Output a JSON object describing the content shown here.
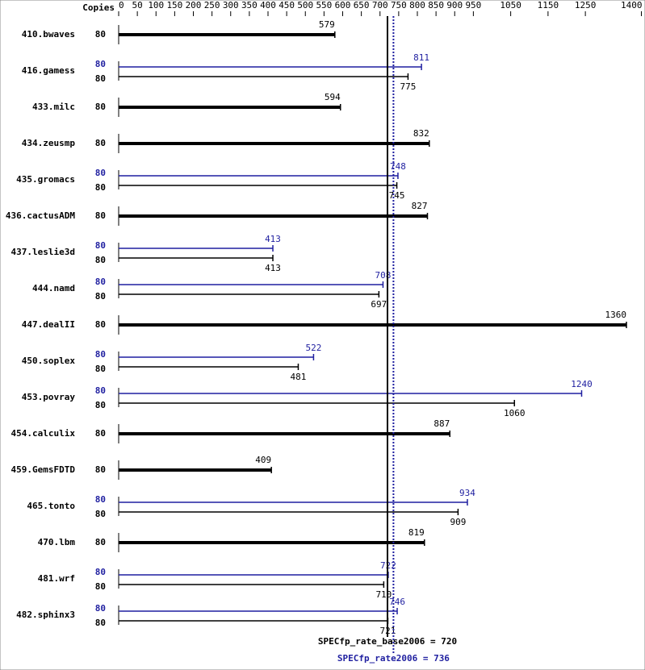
{
  "chart_data": {
    "type": "bar",
    "x_label": "Copies",
    "categories": [
      "410.bwaves",
      "416.gamess",
      "433.milc",
      "434.zeusmp",
      "435.gromacs",
      "436.cactusADM",
      "437.leslie3d",
      "444.namd",
      "447.dealII",
      "450.soplex",
      "453.povray",
      "454.calculix",
      "459.GemsFDTD",
      "465.tonto",
      "470.lbm",
      "481.wrf",
      "482.sphinx3"
    ],
    "series": [
      {
        "name": "base",
        "color": "#000000",
        "copies": [
          80,
          80,
          80,
          80,
          80,
          80,
          80,
          80,
          80,
          80,
          80,
          80,
          80,
          80,
          80,
          80,
          80
        ],
        "values": [
          579,
          775,
          594,
          832,
          745,
          827,
          413,
          697,
          1360,
          481,
          1060,
          887,
          409,
          909,
          819,
          710,
          721
        ]
      },
      {
        "name": "peak",
        "color": "#1f1fa0",
        "copies": [
          null,
          80,
          null,
          null,
          80,
          null,
          80,
          80,
          null,
          80,
          80,
          null,
          null,
          80,
          null,
          80,
          80
        ],
        "values": [
          null,
          811,
          null,
          null,
          748,
          null,
          413,
          708,
          null,
          522,
          1240,
          null,
          null,
          934,
          null,
          722,
          746
        ]
      }
    ],
    "xlim": [
      0,
      1400
    ],
    "xticks": [
      0,
      50,
      100,
      150,
      200,
      250,
      300,
      350,
      400,
      450,
      500,
      550,
      600,
      650,
      700,
      750,
      800,
      850,
      900,
      950,
      1050,
      1150,
      1250,
      1400
    ],
    "reference_lines": [
      {
        "label": "SPECfp_rate_base2006 = 720",
        "value": 720,
        "color": "#000000"
      },
      {
        "label": "SPECfp_rate2006 = 736",
        "value": 736,
        "color": "#1f1fa0"
      }
    ]
  }
}
